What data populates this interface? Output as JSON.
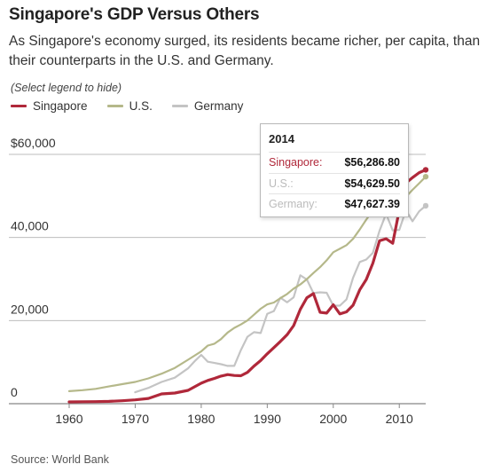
{
  "title": "Singapore's GDP Versus Others",
  "subtitle": "As Singapore's economy surged, its residents became richer, per capita, than their counterparts in the U.S. and Germany.",
  "legend_hint": "(Select legend to hide)",
  "source": "Source: World Bank",
  "colors": {
    "singapore": "#b0283a",
    "us": "#b5b88a",
    "germany": "#c4c4c4",
    "grid": "#bdbdbd"
  },
  "tooltip": {
    "year": "2014",
    "rows": [
      {
        "label": "Singapore:",
        "value": "$56,286.80",
        "color": "#b0283a"
      },
      {
        "label": "U.S.:",
        "value": "$54,629.50",
        "color": "#bbbbbb"
      },
      {
        "label": "Germany:",
        "value": "$47,627.39",
        "color": "#bbbbbb"
      }
    ]
  },
  "chart_data": {
    "type": "line",
    "xlim": [
      1960,
      2014
    ],
    "ylim": [
      0,
      60000
    ],
    "y_ticks": [
      {
        "value": 0,
        "label": "0"
      },
      {
        "value": 20000,
        "label": "20,000"
      },
      {
        "value": 40000,
        "label": "40,000"
      },
      {
        "value": 60000,
        "label": "$60,000"
      }
    ],
    "x_ticks": [
      1960,
      1970,
      1980,
      1990,
      2000,
      2010
    ],
    "grid": true,
    "legend": "top-left",
    "series": [
      {
        "name": "Singapore",
        "color": "#b0283a",
        "points": [
          [
            1960,
            428
          ],
          [
            1962,
            471
          ],
          [
            1964,
            491
          ],
          [
            1966,
            565
          ],
          [
            1968,
            708
          ],
          [
            1970,
            925
          ],
          [
            1972,
            1264
          ],
          [
            1974,
            2342
          ],
          [
            1976,
            2567
          ],
          [
            1978,
            3195
          ],
          [
            1980,
            4928
          ],
          [
            1981,
            5596
          ],
          [
            1982,
            6078
          ],
          [
            1983,
            6633
          ],
          [
            1984,
            7000
          ],
          [
            1985,
            6800
          ],
          [
            1986,
            6736
          ],
          [
            1987,
            7540
          ],
          [
            1988,
            9060
          ],
          [
            1989,
            10375
          ],
          [
            1990,
            12000
          ],
          [
            1991,
            13500
          ],
          [
            1992,
            15000
          ],
          [
            1993,
            16600
          ],
          [
            1994,
            18800
          ],
          [
            1995,
            22700
          ],
          [
            1996,
            25500
          ],
          [
            1997,
            26500
          ],
          [
            1998,
            22000
          ],
          [
            1999,
            21800
          ],
          [
            2000,
            23800
          ],
          [
            2001,
            21600
          ],
          [
            2002,
            22100
          ],
          [
            2003,
            23700
          ],
          [
            2004,
            27400
          ],
          [
            2005,
            29900
          ],
          [
            2006,
            33800
          ],
          [
            2007,
            39200
          ],
          [
            2008,
            39700
          ],
          [
            2009,
            38600
          ],
          [
            2010,
            46600
          ],
          [
            2011,
            53100
          ],
          [
            2012,
            54400
          ],
          [
            2013,
            55600
          ],
          [
            2014,
            56286.8
          ]
        ]
      },
      {
        "name": "U.S.",
        "color": "#b5b88a",
        "points": [
          [
            1960,
            3007
          ],
          [
            1962,
            3243
          ],
          [
            1964,
            3574
          ],
          [
            1966,
            4146
          ],
          [
            1968,
            4696
          ],
          [
            1970,
            5234
          ],
          [
            1972,
            6094
          ],
          [
            1974,
            7225
          ],
          [
            1976,
            8611
          ],
          [
            1978,
            10565
          ],
          [
            1980,
            12575
          ],
          [
            1981,
            13976
          ],
          [
            1982,
            14434
          ],
          [
            1983,
            15544
          ],
          [
            1984,
            17121
          ],
          [
            1985,
            18237
          ],
          [
            1986,
            19071
          ],
          [
            1987,
            20039
          ],
          [
            1988,
            21417
          ],
          [
            1989,
            22857
          ],
          [
            1990,
            23889
          ],
          [
            1991,
            24342
          ],
          [
            1992,
            25419
          ],
          [
            1993,
            26387
          ],
          [
            1994,
            27695
          ],
          [
            1995,
            28691
          ],
          [
            1996,
            29968
          ],
          [
            1997,
            31459
          ],
          [
            1998,
            32854
          ],
          [
            1999,
            34515
          ],
          [
            2000,
            36450
          ],
          [
            2001,
            37274
          ],
          [
            2002,
            38166
          ],
          [
            2003,
            39677
          ],
          [
            2004,
            41922
          ],
          [
            2005,
            44308
          ],
          [
            2006,
            46437
          ],
          [
            2007,
            48062
          ],
          [
            2008,
            48401
          ],
          [
            2009,
            47002
          ],
          [
            2010,
            48374
          ],
          [
            2011,
            49781
          ],
          [
            2012,
            51457
          ],
          [
            2013,
            53042
          ],
          [
            2014,
            54629.5
          ]
        ]
      },
      {
        "name": "Germany",
        "color": "#c4c4c4",
        "points": [
          [
            1970,
            2761
          ],
          [
            1972,
            3803
          ],
          [
            1974,
            5226
          ],
          [
            1976,
            6256
          ],
          [
            1978,
            8500
          ],
          [
            1979,
            10200
          ],
          [
            1980,
            11746
          ],
          [
            1981,
            10100
          ],
          [
            1982,
            9800
          ],
          [
            1983,
            9500
          ],
          [
            1984,
            9100
          ],
          [
            1985,
            9100
          ],
          [
            1986,
            12900
          ],
          [
            1987,
            16100
          ],
          [
            1988,
            17200
          ],
          [
            1989,
            17000
          ],
          [
            1990,
            21600
          ],
          [
            1991,
            22300
          ],
          [
            1992,
            25500
          ],
          [
            1993,
            24400
          ],
          [
            1994,
            25600
          ],
          [
            1995,
            30900
          ],
          [
            1996,
            29900
          ],
          [
            1997,
            26600
          ],
          [
            1998,
            26800
          ],
          [
            1999,
            26700
          ],
          [
            2000,
            23600
          ],
          [
            2001,
            23600
          ],
          [
            2002,
            25100
          ],
          [
            2003,
            30300
          ],
          [
            2004,
            34100
          ],
          [
            2005,
            34700
          ],
          [
            2006,
            36300
          ],
          [
            2007,
            41600
          ],
          [
            2008,
            45700
          ],
          [
            2009,
            41700
          ],
          [
            2010,
            41800
          ],
          [
            2011,
            46600
          ],
          [
            2012,
            43900
          ],
          [
            2013,
            46300
          ],
          [
            2014,
            47627.39
          ]
        ]
      }
    ]
  }
}
